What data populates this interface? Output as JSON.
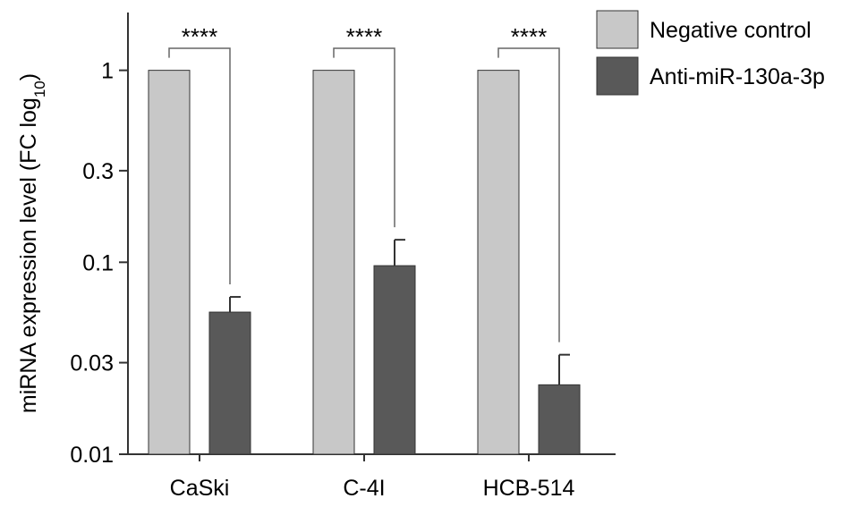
{
  "chart_data": {
    "type": "bar",
    "ylabel": "miRNA expression level (FC log",
    "ylabel_subscript": "10",
    "ylabel_close": ")",
    "yscale": "log",
    "ylim": [
      0.01,
      2.0
    ],
    "yticks": [
      {
        "value": 0.01,
        "label": "0.01"
      },
      {
        "value": 0.03,
        "label": "0.03"
      },
      {
        "value": 0.1,
        "label": "0.1"
      },
      {
        "value": 0.3,
        "label": "0.3"
      },
      {
        "value": 1,
        "label": "1"
      }
    ],
    "categories": [
      "CaSki",
      "C-4I",
      "HCB-514"
    ],
    "series": [
      {
        "name": "Negative control",
        "color": "#c8c8c8",
        "values": [
          1.0,
          1.0,
          1.0
        ],
        "errors": [
          0,
          0,
          0
        ]
      },
      {
        "name": "Anti-miR-130a-3p",
        "color": "#595959",
        "values": [
          0.055,
          0.096,
          0.023
        ],
        "errors": [
          0.011,
          0.035,
          0.01
        ]
      }
    ],
    "annotations": [
      {
        "category": "CaSki",
        "text": "****"
      },
      {
        "category": "C-4I",
        "text": "****"
      },
      {
        "category": "HCB-514",
        "text": "****"
      }
    ],
    "legend": "top-right",
    "grid": false
  }
}
